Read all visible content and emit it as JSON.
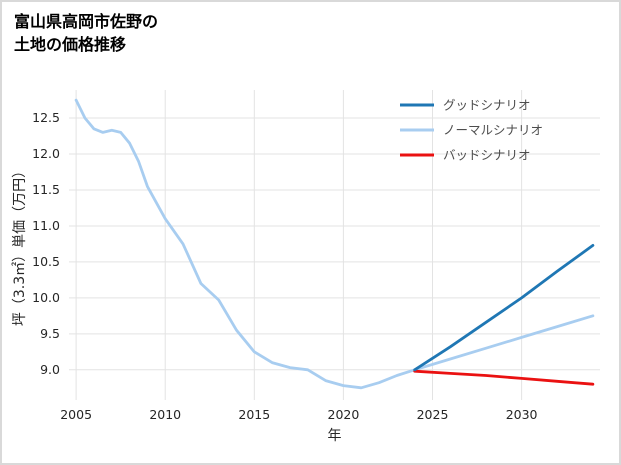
{
  "chart_data": {
    "type": "line",
    "title": "富山県高岡市佐野の土地の価格推移",
    "title_lines": [
      "富山県高岡市佐野の",
      "土地の価格推移"
    ],
    "xlabel": "年",
    "ylabel": "坪（3.3㎡）単価（万円）",
    "xlim": [
      2004.6,
      2034.4
    ],
    "ylim": [
      8.58,
      12.89
    ],
    "xticks": [
      2005,
      2010,
      2015,
      2020,
      2025,
      2030
    ],
    "yticks": [
      9.0,
      9.5,
      10.0,
      10.5,
      11.0,
      11.5,
      12.0,
      12.5
    ],
    "grid": true,
    "legend_position": "upper-right",
    "colors": {
      "good": "#1f77b4",
      "normal": "#a8cdf0",
      "bad": "#ea1111",
      "gridline": "#e3e3e3",
      "tick_label": "#262626",
      "legend_label": "#4d4d4d"
    },
    "series": [
      {
        "name": "グッドシナリオ",
        "key": "good",
        "x": [
          2024,
          2026,
          2028,
          2030,
          2032,
          2034
        ],
        "values": [
          9.0,
          9.32,
          9.66,
          10.0,
          10.37,
          10.73
        ]
      },
      {
        "name": "ノーマルシナリオ",
        "key": "normal",
        "x": [
          2005,
          2005.5,
          2006,
          2006.5,
          2007,
          2007.5,
          2008,
          2008.5,
          2009,
          2010,
          2011,
          2012,
          2013,
          2014,
          2015,
          2016,
          2017,
          2018,
          2019,
          2020,
          2021,
          2022,
          2023,
          2024,
          2026,
          2028,
          2030,
          2032,
          2034
        ],
        "values": [
          12.75,
          12.5,
          12.35,
          12.3,
          12.33,
          12.3,
          12.15,
          11.9,
          11.55,
          11.1,
          10.75,
          10.2,
          9.97,
          9.55,
          9.25,
          9.1,
          9.03,
          9.0,
          8.85,
          8.78,
          8.75,
          8.82,
          8.92,
          9.0,
          9.15,
          9.3,
          9.45,
          9.6,
          9.75
        ]
      },
      {
        "name": "バッドシナリオ",
        "key": "bad",
        "x": [
          2024,
          2026,
          2028,
          2030,
          2032,
          2034
        ],
        "values": [
          8.98,
          8.95,
          8.92,
          8.88,
          8.84,
          8.8
        ]
      }
    ]
  }
}
